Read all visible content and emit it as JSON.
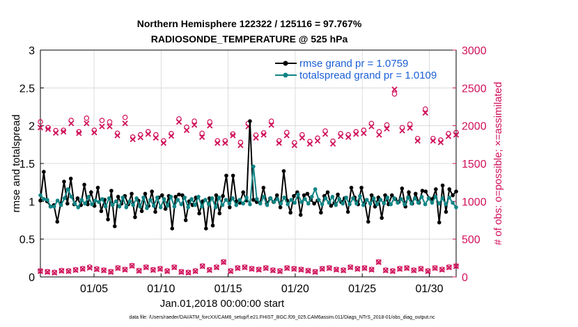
{
  "chart_data": {
    "type": "line",
    "title": "Northern Hemisphere 122322 / 125116 = 97.767%",
    "subtitle": "RADIOSONDE_TEMPERATURE @ 525 hPa",
    "xlabel": "Jan.01,2018 00:00:00 start",
    "ylabel_left": "rmse and totalspread",
    "ylabel_right": "# of obs: o=possible; ×=assimilated",
    "footnote": "data file: /Users/raeder/DAI/ATM_forcXX/CAM6_setup/f.e21.FHIST_BGC.f09_025.CAM6assim.011/Diags_NTrS_2018-01/obs_diag_output.nc",
    "x_range": [
      1,
      32
    ],
    "x_ticks": [
      5,
      10,
      15,
      20,
      25,
      30
    ],
    "x_tick_labels": [
      "01/05",
      "01/10",
      "01/15",
      "01/20",
      "01/25",
      "01/30"
    ],
    "ylim_left": [
      0,
      3
    ],
    "yticks_left": [
      "0",
      "0.5",
      "1",
      "1.5",
      "2",
      "2.5",
      "3"
    ],
    "ylim_right": [
      0,
      3000
    ],
    "yticks_right": [
      "0",
      "500",
      "1000",
      "1500",
      "2000",
      "2500",
      "3000"
    ],
    "colors": {
      "rmse": "#000000",
      "spread": "#108484",
      "obs": "#d0105a",
      "grid": "#d4d4d4",
      "legend_text": "#1a5fd6"
    },
    "legend": [
      {
        "label": "rmse grand pr = 1.0759",
        "series": "rmse"
      },
      {
        "label": "totalspread grand pr = 1.0109",
        "series": "spread"
      }
    ],
    "rmse": [
      1.01,
      1.39,
      1.0,
      0.93,
      0.95,
      0.73,
      0.97,
      1.26,
      0.97,
      1.3,
      0.96,
      1.04,
      0.95,
      1.22,
      0.96,
      1.12,
      0.94,
      1.18,
      0.87,
      1.02,
      0.76,
      1.14,
      0.67,
      1.06,
      0.97,
      1.07,
      0.96,
      1.1,
      0.79,
      1.01,
      0.87,
      1.1,
      0.94,
      1.13,
      0.86,
      1.05,
      1.08,
      0.9,
      1.07,
      0.64,
      1.06,
      1.09,
      1.08,
      0.75,
      1.0,
      0.95,
      1.05,
      0.84,
      1.0,
      0.64,
      1.04,
      0.68,
      1.08,
      0.84,
      1.07,
      1.34,
      0.92,
      1.34,
      1.0,
      0.98,
      1.12,
      1.01,
      2.06,
      1.02,
      0.99,
      0.98,
      1.18,
      0.97,
      1.04,
      0.99,
      1.08,
      0.92,
      1.4,
      1.01,
      0.85,
      1.07,
      1.12,
      0.82,
      1.08,
      1.1,
      1.02,
      0.97,
      1.01,
      0.85,
      1.07,
      1.12,
      0.94,
      0.98,
      1.09,
      0.99,
      1.04,
      0.86,
      1.18,
      1.05,
      0.96,
      1.18,
      0.98,
      0.73,
      1.08,
      0.93,
      1.05,
      0.78,
      1.08,
      0.96,
      1.08,
      1.03,
      0.99,
      1.17,
      0.93,
      1.12,
      0.97,
      1.1,
      0.98,
      1.14,
      1.13,
      1.04,
      1.03,
      1.16,
      0.72,
      1.21,
      0.86,
      1.16,
      1.08,
      1.13
    ],
    "spread": [
      1.08,
      1.03,
      1.02,
      0.93,
      0.93,
      1.01,
      0.95,
      1.04,
      1.16,
      1.06,
      0.97,
      0.92,
      1.02,
      0.97,
      1.06,
      0.96,
      1.01,
      0.99,
      1.03,
      0.93,
      1.04,
      0.95,
      1.0,
      0.93,
      1.05,
      0.92,
      1.0,
      0.95,
      1.04,
      0.93,
      1.05,
      0.91,
      1.02,
      0.94,
      1.05,
      0.92,
      1.03,
      0.94,
      1.06,
      0.93,
      1.02,
      0.96,
      1.05,
      0.92,
      1.03,
      0.95,
      1.06,
      0.93,
      1.02,
      0.96,
      1.04,
      0.92,
      1.05,
      0.95,
      1.02,
      0.97,
      1.04,
      0.95,
      1.02,
      0.97,
      1.05,
      0.96,
      1.46,
      1.03,
      0.97,
      1.06,
      0.95,
      1.04,
      0.99,
      1.03,
      0.97,
      1.05,
      0.96,
      1.02,
      0.98,
      1.09,
      0.99,
      1.03,
      0.97,
      1.06,
      1.16,
      1.02,
      0.96,
      1.04,
      0.98,
      1.06,
      0.95,
      1.03,
      0.97,
      1.05,
      0.96,
      1.04,
      0.97,
      1.07,
      0.95,
      1.02,
      0.97,
      1.04,
      0.96,
      1.02,
      0.97,
      1.05,
      0.96,
      1.04,
      0.98,
      1.03,
      0.96,
      1.05,
      0.97,
      1.04,
      0.98,
      1.06,
      0.96,
      1.04,
      0.98,
      1.06,
      0.97,
      1.04,
      0.96,
      1.05,
      0.98,
      0.92
    ],
    "obs_possible": [
      2050,
      1975,
      1935,
      1940,
      2070,
      1920,
      2100,
      1940,
      2070,
      2050,
      1900,
      2110,
      1850,
      1880,
      1920,
      1880,
      1800,
      1895,
      2090,
      1980,
      2060,
      1900,
      2050,
      1800,
      1800,
      1890,
      1780,
      2030,
      1875,
      1905,
      2060,
      1800,
      1910,
      1775,
      1880,
      1790,
      1835,
      1930,
      1795,
      1895,
      1880,
      1920,
      1940,
      2030,
      1920,
      2010,
      2420,
      1975,
      2020,
      1830,
      2220,
      1830,
      1810,
      1895,
      1910
    ],
    "obs_assimilated": [
      1975,
      1955,
      1905,
      1920,
      2030,
      1900,
      2030,
      1910,
      1990,
      1990,
      1870,
      2030,
      1820,
      1845,
      1890,
      1840,
      1770,
      1865,
      2050,
      1940,
      2010,
      1850,
      2000,
      1770,
      1770,
      1870,
      1740,
      1990,
      1840,
      1880,
      2010,
      1770,
      1870,
      1740,
      1840,
      1760,
      1800,
      1890,
      1760,
      1860,
      1850,
      1890,
      1900,
      1990,
      1880,
      1960,
      2480,
      1935,
      1970,
      1800,
      2170,
      1800,
      1780,
      1860,
      1880
    ],
    "obs_low_possible": [
      80,
      70,
      60,
      85,
      80,
      95,
      110,
      130,
      105,
      90,
      70,
      120,
      100,
      150,
      85,
      130,
      95,
      110,
      80,
      130,
      70,
      60,
      80,
      145,
      95,
      130,
      200,
      80,
      120,
      130,
      110,
      100,
      120,
      90,
      80,
      120,
      110,
      100,
      85,
      70,
      110,
      120,
      100,
      90,
      130,
      110,
      120,
      100,
      200,
      90,
      80,
      110,
      120,
      90,
      110,
      80,
      120,
      100,
      130,
      145
    ],
    "obs_low_assimilated": [
      75,
      65,
      55,
      80,
      75,
      90,
      105,
      120,
      100,
      85,
      65,
      115,
      95,
      145,
      80,
      125,
      90,
      105,
      75,
      125,
      65,
      55,
      75,
      140,
      90,
      125,
      195,
      75,
      115,
      125,
      105,
      95,
      115,
      85,
      75,
      115,
      105,
      95,
      80,
      65,
      105,
      115,
      95,
      85,
      125,
      105,
      115,
      95,
      195,
      85,
      75,
      105,
      115,
      85,
      105,
      75,
      115,
      95,
      125,
      140
    ]
  }
}
